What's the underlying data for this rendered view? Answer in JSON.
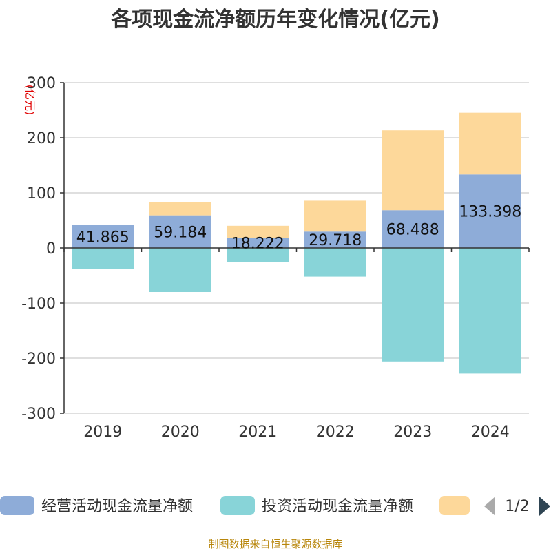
{
  "chart_data": {
    "type": "bar",
    "stacked": true,
    "title": "各项现金流净额历年变化情况(亿元)",
    "unit_label": "(亿元)",
    "categories": [
      "2019",
      "2020",
      "2021",
      "2022",
      "2023",
      "2024"
    ],
    "ylim": [
      -300,
      300
    ],
    "yticks": [
      300,
      200,
      100,
      0,
      -100,
      -200,
      -300
    ],
    "grid": true,
    "series": [
      {
        "name": "经营活动现金流量净额",
        "color": "#8eacd8",
        "values": [
          41.865,
          59.184,
          18.222,
          29.718,
          68.488,
          133.398
        ],
        "labels": [
          "41.865",
          "59.184",
          "18.222",
          "29.718",
          "68.488",
          "133.398"
        ]
      },
      {
        "name": "投资活动现金流量净额",
        "color": "#88d4d8",
        "values": [
          -38,
          -80,
          -25,
          -52,
          -206,
          -228
        ]
      },
      {
        "name": "",
        "color": "#fdd89a",
        "values": [
          0,
          24,
          22,
          56,
          145,
          112
        ]
      }
    ],
    "legend_position": "bottom",
    "legend_page": "1/2"
  },
  "footer": "制图数据来自恒生聚源数据库",
  "colors": {
    "axis": "#333333",
    "grid": "#cccccc",
    "title": "#333333",
    "unit": "#e00000",
    "footer": "#b8860b",
    "pager_inactive": "#aaaaaa",
    "pager_active": "#2f4554"
  }
}
